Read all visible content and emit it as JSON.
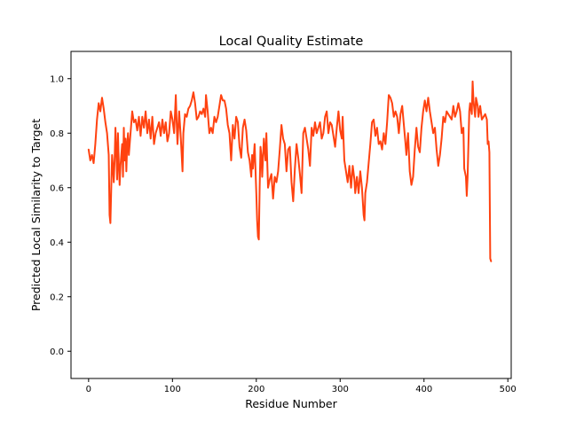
{
  "chart_data": {
    "type": "line",
    "title": "Local Quality Estimate",
    "xlabel": "Residue Number",
    "ylabel": "Predicted Local Similarity to Target",
    "xlim": [
      -21,
      504
    ],
    "ylim": [
      -0.1,
      1.1
    ],
    "x_ticks": [
      0,
      100,
      200,
      300,
      400,
      500
    ],
    "y_ticks": [
      0.0,
      0.2,
      0.4,
      0.6,
      0.8,
      1.0
    ],
    "grid": false,
    "line_color": "#ff4210",
    "series": [
      {
        "points": [
          [
            0,
            0.74
          ],
          [
            2,
            0.7
          ],
          [
            4,
            0.72
          ],
          [
            6,
            0.69
          ],
          [
            8,
            0.76
          ],
          [
            10,
            0.85
          ],
          [
            12,
            0.91
          ],
          [
            14,
            0.88
          ],
          [
            16,
            0.93
          ],
          [
            18,
            0.89
          ],
          [
            20,
            0.84
          ],
          [
            22,
            0.8
          ],
          [
            24,
            0.72
          ],
          [
            25,
            0.5
          ],
          [
            26,
            0.47
          ],
          [
            27,
            0.6
          ],
          [
            28,
            0.72
          ],
          [
            29,
            0.68
          ],
          [
            30,
            0.62
          ],
          [
            31,
            0.7
          ],
          [
            32,
            0.82
          ],
          [
            33,
            0.74
          ],
          [
            34,
            0.63
          ],
          [
            35,
            0.8
          ],
          [
            36,
            0.69
          ],
          [
            37,
            0.61
          ],
          [
            38,
            0.68
          ],
          [
            40,
            0.76
          ],
          [
            41,
            0.64
          ],
          [
            42,
            0.82
          ],
          [
            43,
            0.7
          ],
          [
            44,
            0.78
          ],
          [
            45,
            0.66
          ],
          [
            46,
            0.76
          ],
          [
            47,
            0.8
          ],
          [
            48,
            0.72
          ],
          [
            50,
            0.8
          ],
          [
            52,
            0.88
          ],
          [
            54,
            0.84
          ],
          [
            56,
            0.85
          ],
          [
            58,
            0.81
          ],
          [
            60,
            0.86
          ],
          [
            62,
            0.79
          ],
          [
            64,
            0.86
          ],
          [
            66,
            0.82
          ],
          [
            68,
            0.88
          ],
          [
            70,
            0.8
          ],
          [
            72,
            0.85
          ],
          [
            74,
            0.78
          ],
          [
            76,
            0.86
          ],
          [
            78,
            0.76
          ],
          [
            80,
            0.8
          ],
          [
            82,
            0.82
          ],
          [
            84,
            0.84
          ],
          [
            86,
            0.79
          ],
          [
            88,
            0.85
          ],
          [
            90,
            0.8
          ],
          [
            92,
            0.84
          ],
          [
            94,
            0.77
          ],
          [
            96,
            0.8
          ],
          [
            98,
            0.88
          ],
          [
            100,
            0.85
          ],
          [
            102,
            0.8
          ],
          [
            104,
            0.94
          ],
          [
            105,
            0.84
          ],
          [
            106,
            0.76
          ],
          [
            108,
            0.88
          ],
          [
            110,
            0.78
          ],
          [
            111,
            0.72
          ],
          [
            112,
            0.66
          ],
          [
            113,
            0.8
          ],
          [
            115,
            0.87
          ],
          [
            117,
            0.86
          ],
          [
            119,
            0.89
          ],
          [
            121,
            0.9
          ],
          [
            123,
            0.92
          ],
          [
            125,
            0.95
          ],
          [
            127,
            0.91
          ],
          [
            129,
            0.85
          ],
          [
            131,
            0.86
          ],
          [
            133,
            0.88
          ],
          [
            135,
            0.87
          ],
          [
            137,
            0.89
          ],
          [
            139,
            0.86
          ],
          [
            140,
            0.94
          ],
          [
            142,
            0.88
          ],
          [
            144,
            0.8
          ],
          [
            146,
            0.82
          ],
          [
            148,
            0.8
          ],
          [
            150,
            0.86
          ],
          [
            152,
            0.84
          ],
          [
            154,
            0.86
          ],
          [
            156,
            0.9
          ],
          [
            158,
            0.94
          ],
          [
            160,
            0.92
          ],
          [
            162,
            0.92
          ],
          [
            164,
            0.89
          ],
          [
            166,
            0.83
          ],
          [
            168,
            0.8
          ],
          [
            170,
            0.7
          ],
          [
            172,
            0.83
          ],
          [
            174,
            0.78
          ],
          [
            176,
            0.86
          ],
          [
            178,
            0.84
          ],
          [
            180,
            0.75
          ],
          [
            182,
            0.71
          ],
          [
            184,
            0.82
          ],
          [
            186,
            0.85
          ],
          [
            188,
            0.81
          ],
          [
            190,
            0.73
          ],
          [
            192,
            0.7
          ],
          [
            194,
            0.64
          ],
          [
            195,
            0.72
          ],
          [
            196,
            0.67
          ],
          [
            198,
            0.76
          ],
          [
            200,
            0.58
          ],
          [
            201,
            0.48
          ],
          [
            202,
            0.42
          ],
          [
            203,
            0.41
          ],
          [
            204,
            0.6
          ],
          [
            205,
            0.75
          ],
          [
            206,
            0.72
          ],
          [
            207,
            0.64
          ],
          [
            209,
            0.78
          ],
          [
            211,
            0.7
          ],
          [
            212,
            0.8
          ],
          [
            214,
            0.6
          ],
          [
            216,
            0.63
          ],
          [
            218,
            0.65
          ],
          [
            220,
            0.56
          ],
          [
            222,
            0.64
          ],
          [
            224,
            0.62
          ],
          [
            226,
            0.66
          ],
          [
            228,
            0.74
          ],
          [
            230,
            0.83
          ],
          [
            232,
            0.78
          ],
          [
            234,
            0.76
          ],
          [
            236,
            0.66
          ],
          [
            238,
            0.74
          ],
          [
            240,
            0.75
          ],
          [
            242,
            0.62
          ],
          [
            244,
            0.55
          ],
          [
            246,
            0.67
          ],
          [
            248,
            0.76
          ],
          [
            250,
            0.71
          ],
          [
            252,
            0.65
          ],
          [
            254,
            0.58
          ],
          [
            256,
            0.8
          ],
          [
            258,
            0.82
          ],
          [
            260,
            0.78
          ],
          [
            262,
            0.74
          ],
          [
            264,
            0.68
          ],
          [
            266,
            0.82
          ],
          [
            268,
            0.79
          ],
          [
            270,
            0.84
          ],
          [
            272,
            0.8
          ],
          [
            274,
            0.82
          ],
          [
            276,
            0.84
          ],
          [
            278,
            0.78
          ],
          [
            280,
            0.8
          ],
          [
            282,
            0.86
          ],
          [
            284,
            0.88
          ],
          [
            286,
            0.8
          ],
          [
            288,
            0.84
          ],
          [
            290,
            0.83
          ],
          [
            292,
            0.79
          ],
          [
            294,
            0.75
          ],
          [
            296,
            0.82
          ],
          [
            298,
            0.88
          ],
          [
            300,
            0.81
          ],
          [
            302,
            0.78
          ],
          [
            303,
            0.86
          ],
          [
            305,
            0.7
          ],
          [
            307,
            0.66
          ],
          [
            309,
            0.62
          ],
          [
            311,
            0.68
          ],
          [
            313,
            0.6
          ],
          [
            315,
            0.68
          ],
          [
            317,
            0.63
          ],
          [
            318,
            0.58
          ],
          [
            320,
            0.64
          ],
          [
            322,
            0.58
          ],
          [
            324,
            0.66
          ],
          [
            326,
            0.6
          ],
          [
            328,
            0.5
          ],
          [
            329,
            0.48
          ],
          [
            330,
            0.58
          ],
          [
            332,
            0.62
          ],
          [
            334,
            0.69
          ],
          [
            336,
            0.76
          ],
          [
            338,
            0.84
          ],
          [
            340,
            0.85
          ],
          [
            342,
            0.79
          ],
          [
            344,
            0.82
          ],
          [
            346,
            0.76
          ],
          [
            348,
            0.77
          ],
          [
            350,
            0.74
          ],
          [
            352,
            0.8
          ],
          [
            354,
            0.76
          ],
          [
            356,
            0.84
          ],
          [
            358,
            0.94
          ],
          [
            360,
            0.93
          ],
          [
            362,
            0.91
          ],
          [
            364,
            0.86
          ],
          [
            366,
            0.88
          ],
          [
            368,
            0.86
          ],
          [
            370,
            0.8
          ],
          [
            372,
            0.87
          ],
          [
            374,
            0.9
          ],
          [
            376,
            0.83
          ],
          [
            378,
            0.76
          ],
          [
            379,
            0.72
          ],
          [
            381,
            0.8
          ],
          [
            383,
            0.66
          ],
          [
            385,
            0.61
          ],
          [
            387,
            0.64
          ],
          [
            389,
            0.74
          ],
          [
            391,
            0.82
          ],
          [
            393,
            0.75
          ],
          [
            395,
            0.73
          ],
          [
            397,
            0.82
          ],
          [
            399,
            0.88
          ],
          [
            401,
            0.92
          ],
          [
            403,
            0.88
          ],
          [
            405,
            0.93
          ],
          [
            407,
            0.88
          ],
          [
            409,
            0.84
          ],
          [
            411,
            0.8
          ],
          [
            413,
            0.82
          ],
          [
            415,
            0.74
          ],
          [
            417,
            0.68
          ],
          [
            419,
            0.72
          ],
          [
            421,
            0.78
          ],
          [
            423,
            0.86
          ],
          [
            425,
            0.84
          ],
          [
            427,
            0.88
          ],
          [
            429,
            0.87
          ],
          [
            431,
            0.86
          ],
          [
            433,
            0.85
          ],
          [
            435,
            0.9
          ],
          [
            437,
            0.86
          ],
          [
            439,
            0.88
          ],
          [
            441,
            0.91
          ],
          [
            443,
            0.88
          ],
          [
            445,
            0.8
          ],
          [
            447,
            0.82
          ],
          [
            448,
            0.67
          ],
          [
            450,
            0.64
          ],
          [
            451,
            0.57
          ],
          [
            452,
            0.64
          ],
          [
            454,
            0.88
          ],
          [
            455,
            0.91
          ],
          [
            457,
            0.87
          ],
          [
            458,
            0.99
          ],
          [
            459,
            0.92
          ],
          [
            461,
            0.86
          ],
          [
            462,
            0.93
          ],
          [
            464,
            0.9
          ],
          [
            465,
            0.86
          ],
          [
            467,
            0.9
          ],
          [
            469,
            0.85
          ],
          [
            471,
            0.86
          ],
          [
            473,
            0.87
          ],
          [
            475,
            0.85
          ],
          [
            476,
            0.76
          ],
          [
            477,
            0.77
          ],
          [
            478,
            0.73
          ],
          [
            479,
            0.34
          ],
          [
            480,
            0.33
          ]
        ]
      }
    ]
  }
}
